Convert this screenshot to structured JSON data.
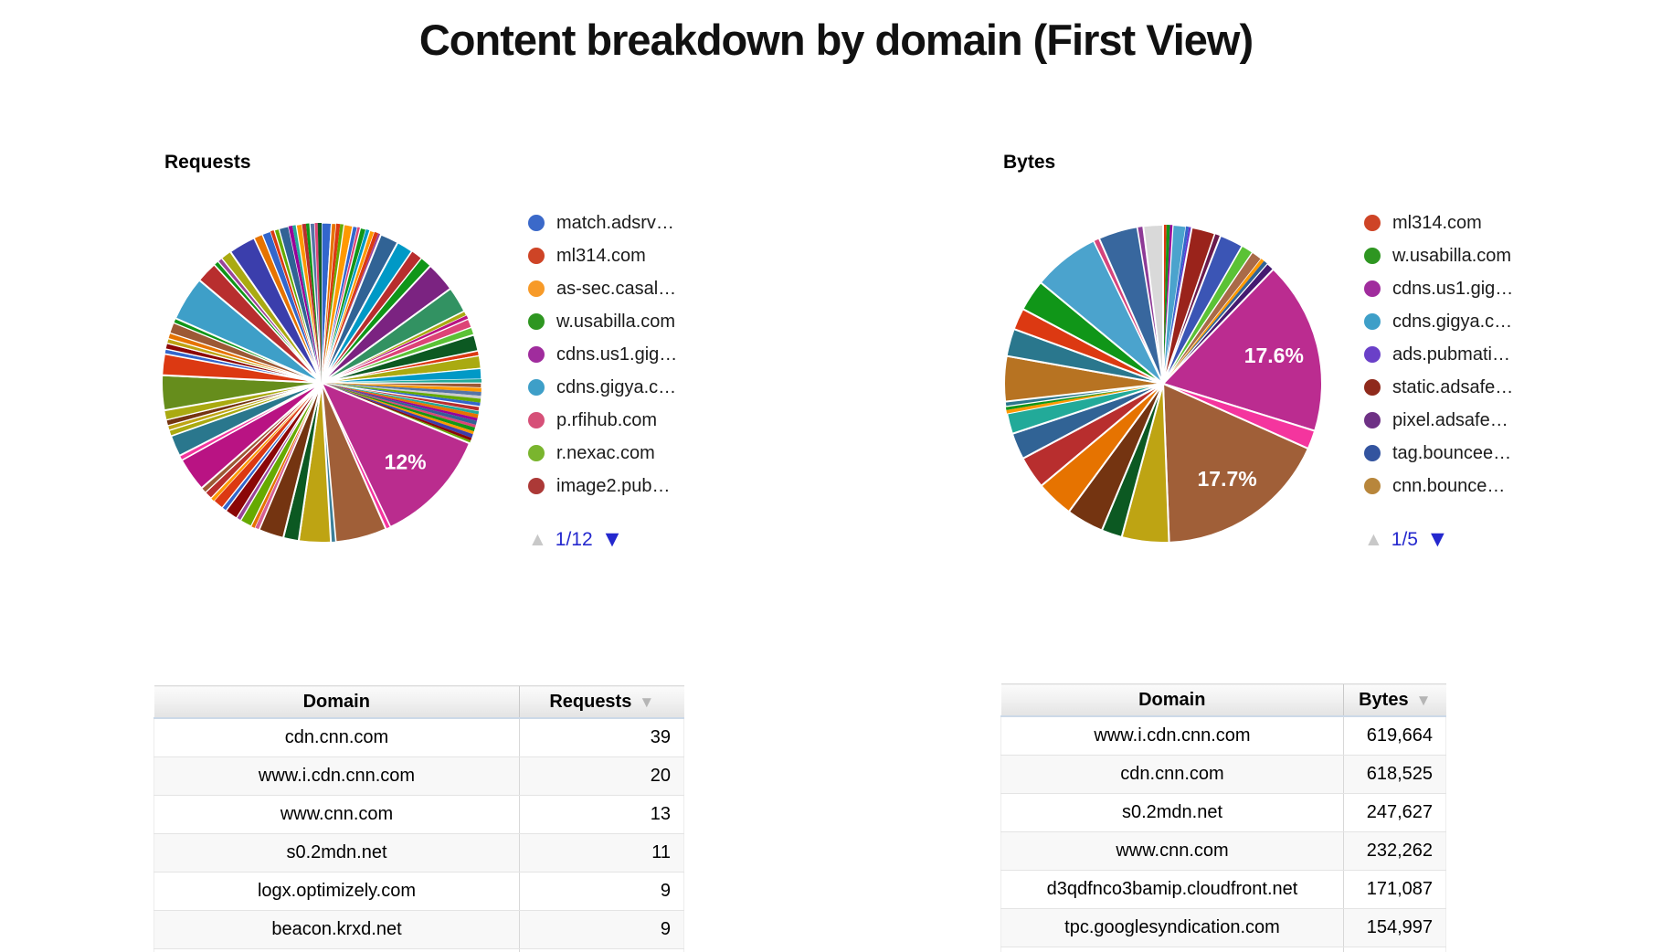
{
  "title": "Content breakdown by domain (First View)",
  "ui": {
    "sort_icon": "▼",
    "pager_up_icon": "▲",
    "pager_down_icon": "▼",
    "pager_active_color": "#2428ce",
    "pager_disabled_color": "#c8c8c8"
  },
  "chart_data": [
    {
      "type": "pie",
      "title": "Requests",
      "legend_page": "1/12",
      "legend_entries": [
        {
          "label": "match.adsrv…",
          "color": "#3B69C9"
        },
        {
          "label": "ml314.com",
          "color": "#CE4426"
        },
        {
          "label": "as-sec.casal…",
          "color": "#F79A28"
        },
        {
          "label": "w.usabilla.com",
          "color": "#2E9621"
        },
        {
          "label": "cdns.us1.gig…",
          "color": "#A02C9D"
        },
        {
          "label": "cdns.gigya.c…",
          "color": "#3E9FC8"
        },
        {
          "label": "p.rfihub.com",
          "color": "#D65078"
        },
        {
          "label": "r.nexac.com",
          "color": "#7AB52E"
        },
        {
          "label": "image2.pub…",
          "color": "#AC3937"
        }
      ],
      "labeled_slices": [
        {
          "label": "12%",
          "value_pct": 12
        }
      ],
      "slices": [
        {
          "c": "#3366CC",
          "v": 1.0
        },
        {
          "c": "#E67300",
          "v": 0.5
        },
        {
          "c": "#DC3912",
          "v": 0.4
        },
        {
          "c": "#66AA00",
          "v": 0.4
        },
        {
          "c": "#FF9900",
          "v": 0.9
        },
        {
          "c": "#3366CC",
          "v": 0.5
        },
        {
          "c": "#DD4477",
          "v": 0.3
        },
        {
          "c": "#109618",
          "v": 0.6
        },
        {
          "c": "#0099C6",
          "v": 0.4
        },
        {
          "c": "#FF9900",
          "v": 0.5
        },
        {
          "c": "#DC3912",
          "v": 0.4
        },
        {
          "c": "#994499",
          "v": 0.3
        },
        {
          "c": "#316395",
          "v": 1.9
        },
        {
          "c": "#0099C6",
          "v": 1.7
        },
        {
          "c": "#B82E2E",
          "v": 1.2
        },
        {
          "c": "#109618",
          "v": 1.2
        },
        {
          "c": "#7B2381",
          "v": 3.1
        },
        {
          "c": "#329262",
          "v": 2.7
        },
        {
          "c": "#AAAA11",
          "v": 0.5
        },
        {
          "c": "#B91383",
          "v": 0.4
        },
        {
          "c": "#DD4477",
          "v": 0.9
        },
        {
          "c": "#5BC236",
          "v": 0.8
        },
        {
          "c": "#0C5922",
          "v": 1.7
        },
        {
          "c": "#DC3912",
          "v": 0.5
        },
        {
          "c": "#AAAA11",
          "v": 1.3
        },
        {
          "c": "#0099C6",
          "v": 1.1
        },
        {
          "c": "#22AA99",
          "v": 0.4
        },
        {
          "c": "#9C5935",
          "v": 0.5
        },
        {
          "c": "#FF9900",
          "v": 0.4
        },
        {
          "c": "#5574A6",
          "v": 0.4
        },
        {
          "c": "#CCCCCC",
          "v": 0.3
        },
        {
          "c": "#66AA00",
          "v": 0.4
        },
        {
          "c": "#3366CC",
          "v": 0.4
        },
        {
          "c": "#B82E2E",
          "v": 0.5
        },
        {
          "c": "#22AA99",
          "v": 0.3
        },
        {
          "c": "#E67300",
          "v": 0.4
        },
        {
          "c": "#990099",
          "v": 0.3
        },
        {
          "c": "#316395",
          "v": 0.4
        },
        {
          "c": "#DD4477",
          "v": 0.3
        },
        {
          "c": "#109618",
          "v": 0.4
        },
        {
          "c": "#FF9900",
          "v": 0.3
        },
        {
          "c": "#3B3EAC",
          "v": 0.4
        },
        {
          "c": "#8B0707",
          "v": 0.3
        },
        {
          "c": "#66AA00",
          "v": 0.3
        },
        {
          "c": "#BA2C8E",
          "v": 12.0,
          "label": "12%"
        },
        {
          "c": "#F4359E",
          "v": 0.5
        },
        {
          "c": "#A05F38",
          "v": 5.3
        },
        {
          "c": "#3A7E99",
          "v": 0.5
        },
        {
          "c": "#BEA413",
          "v": 3.3
        },
        {
          "c": "#0C5922",
          "v": 1.6
        },
        {
          "c": "#743411",
          "v": 2.6
        },
        {
          "c": "#D75F93",
          "v": 0.5
        },
        {
          "c": "#E67300",
          "v": 0.4
        },
        {
          "c": "#66AA00",
          "v": 1.2
        },
        {
          "c": "#994499",
          "v": 0.5
        },
        {
          "c": "#8B0707",
          "v": 1.3
        },
        {
          "c": "#3366CC",
          "v": 0.5
        },
        {
          "c": "#DC3912",
          "v": 1.1
        },
        {
          "c": "#FF9900",
          "v": 0.4
        },
        {
          "c": "#B82E2E",
          "v": 0.8
        },
        {
          "c": "#9C5935",
          "v": 0.6
        },
        {
          "c": "#B91383",
          "v": 3.5
        },
        {
          "c": "#F4359E",
          "v": 0.5
        },
        {
          "c": "#2A778D",
          "v": 2.2
        },
        {
          "c": "#AAAA11",
          "v": 0.6
        },
        {
          "c": "#BEA413",
          "v": 0.5
        },
        {
          "c": "#743411",
          "v": 0.6
        },
        {
          "c": "#AAAA11",
          "v": 1.0
        },
        {
          "c": "#668D1C",
          "v": 3.6
        },
        {
          "c": "#DC3912",
          "v": 2.2
        },
        {
          "c": "#3366CC",
          "v": 0.5
        },
        {
          "c": "#8B0707",
          "v": 0.6
        },
        {
          "c": "#BEA413",
          "v": 0.5
        },
        {
          "c": "#E67300",
          "v": 0.6
        },
        {
          "c": "#9C5935",
          "v": 1.1
        },
        {
          "c": "#109618",
          "v": 0.5
        },
        {
          "c": "#3E9FC8",
          "v": 4.6
        },
        {
          "c": "#B82E2E",
          "v": 2.2
        },
        {
          "c": "#109618",
          "v": 0.5
        },
        {
          "c": "#994499",
          "v": 0.5
        },
        {
          "c": "#AAAA11",
          "v": 1.1
        },
        {
          "c": "#3B3EAC",
          "v": 2.8
        },
        {
          "c": "#E67300",
          "v": 0.9
        },
        {
          "c": "#3366CC",
          "v": 0.9
        },
        {
          "c": "#DC3912",
          "v": 0.4
        },
        {
          "c": "#66AA00",
          "v": 0.5
        },
        {
          "c": "#316395",
          "v": 1.0
        },
        {
          "c": "#990099",
          "v": 0.4
        },
        {
          "c": "#22AA99",
          "v": 0.4
        },
        {
          "c": "#FF9900",
          "v": 0.6
        },
        {
          "c": "#B82E2E",
          "v": 0.4
        },
        {
          "c": "#109618",
          "v": 0.4
        },
        {
          "c": "#5574A6",
          "v": 0.5
        },
        {
          "c": "#DD4477",
          "v": 0.3
        },
        {
          "c": "#0C5922",
          "v": 0.4
        }
      ]
    },
    {
      "type": "pie",
      "title": "Bytes",
      "legend_page": "1/5",
      "legend_entries": [
        {
          "label": "ml314.com",
          "color": "#CE4426"
        },
        {
          "label": "w.usabilla.com",
          "color": "#2E9621"
        },
        {
          "label": "cdns.us1.gig…",
          "color": "#A02C9D"
        },
        {
          "label": "cdns.gigya.c…",
          "color": "#3E9FC8"
        },
        {
          "label": "ads.pubmati…",
          "color": "#6A40C8"
        },
        {
          "label": "static.adsafe…",
          "color": "#8F2A1C"
        },
        {
          "label": "pixel.adsafe…",
          "color": "#6E3185"
        },
        {
          "label": "tag.bouncee…",
          "color": "#33549F"
        },
        {
          "label": "cnn.bounce…",
          "color": "#B8863B"
        }
      ],
      "labeled_slices": [
        {
          "label": "17.6%",
          "value_pct": 17.6
        },
        {
          "label": "17.7%",
          "value_pct": 17.7
        }
      ],
      "slices": [
        {
          "c": "#DC3912",
          "v": 0.35
        },
        {
          "c": "#109618",
          "v": 0.35
        },
        {
          "c": "#990099",
          "v": 0.3
        },
        {
          "c": "#4BA3CD",
          "v": 1.3
        },
        {
          "c": "#3366CC",
          "v": 0.3
        },
        {
          "c": "#6633CC",
          "v": 0.3
        },
        {
          "c": "#9A231B",
          "v": 2.4
        },
        {
          "c": "#6A1B4D",
          "v": 0.6
        },
        {
          "c": "#3B55B5",
          "v": 2.4
        },
        {
          "c": "#5BC236",
          "v": 1.2
        },
        {
          "c": "#A96A48",
          "v": 1.1
        },
        {
          "c": "#FF9900",
          "v": 0.35
        },
        {
          "c": "#316395",
          "v": 0.45
        },
        {
          "c": "#451A70",
          "v": 0.8
        },
        {
          "c": "#BB2C90",
          "v": 17.6,
          "label": "17.6%"
        },
        {
          "c": "#F4359E",
          "v": 1.9
        },
        {
          "c": "#A05F38",
          "v": 17.7,
          "label": "17.7%"
        },
        {
          "c": "#BEA413",
          "v": 4.8
        },
        {
          "c": "#0C5922",
          "v": 2.1
        },
        {
          "c": "#743411",
          "v": 3.8
        },
        {
          "c": "#E67300",
          "v": 3.8
        },
        {
          "c": "#B82E2E",
          "v": 3.3
        },
        {
          "c": "#316395",
          "v": 2.7
        },
        {
          "c": "#22AA99",
          "v": 2.1
        },
        {
          "c": "#FF9900",
          "v": 0.35
        },
        {
          "c": "#109618",
          "v": 0.35
        },
        {
          "c": "#2A778D",
          "v": 0.5
        },
        {
          "c": "#B77322",
          "v": 4.6
        },
        {
          "c": "#2A778D",
          "v": 2.8
        },
        {
          "c": "#DC3912",
          "v": 2.2
        },
        {
          "c": "#109618",
          "v": 3.2
        },
        {
          "c": "#4BA3CD",
          "v": 6.8
        },
        {
          "c": "#D5447C",
          "v": 0.6
        },
        {
          "c": "#38679E",
          "v": 4.0
        },
        {
          "c": "#8E3A96",
          "v": 0.6
        },
        {
          "c": "#D9D9D9",
          "v": 2.0
        }
      ]
    },
    {
      "type": "table",
      "title": "Requests by domain",
      "columns": [
        "Domain",
        "Requests"
      ],
      "sorted_by": "Requests",
      "rows": [
        [
          "cdn.cnn.com",
          "39"
        ],
        [
          "www.i.cdn.cnn.com",
          "20"
        ],
        [
          "www.cnn.com",
          "13"
        ],
        [
          "s0.2mdn.net",
          "11"
        ],
        [
          "logx.optimizely.com",
          "9"
        ],
        [
          "beacon.krxd.net",
          "9"
        ]
      ]
    },
    {
      "type": "table",
      "title": "Bytes by domain",
      "columns": [
        "Domain",
        "Bytes"
      ],
      "sorted_by": "Bytes",
      "rows": [
        [
          "www.i.cdn.cnn.com",
          "619,664"
        ],
        [
          "cdn.cnn.com",
          "618,525"
        ],
        [
          "s0.2mdn.net",
          "247,627"
        ],
        [
          "www.cnn.com",
          "232,262"
        ],
        [
          "d3qdfnco3bamip.cloudfront.net",
          "171,087"
        ],
        [
          "tpc.googlesyndication.com",
          "154,997"
        ]
      ]
    }
  ]
}
